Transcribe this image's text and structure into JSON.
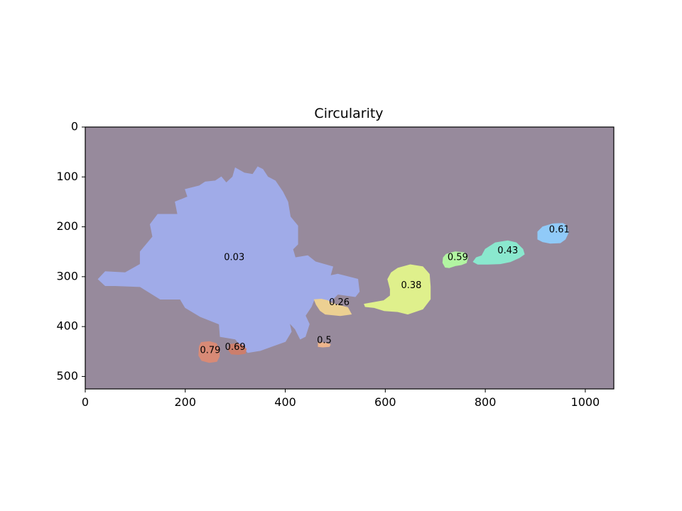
{
  "chart_data": {
    "type": "heatmap",
    "title": "Circularity",
    "xlabel": "",
    "ylabel": "",
    "xlim": [
      0,
      1057
    ],
    "ylim": [
      525,
      0
    ],
    "y_inverted": true,
    "grid": false,
    "background_color": "#978a9c",
    "x_ticks": [
      0,
      200,
      400,
      600,
      800,
      1000
    ],
    "y_ticks": [
      0,
      100,
      200,
      300,
      400,
      500
    ],
    "regions": [
      {
        "label": "0.03",
        "circularity": 0.03,
        "color": "#a0abe8",
        "label_x": 298,
        "label_y": 262,
        "outline": [
          [
            26,
            305
          ],
          [
            40,
            290
          ],
          [
            80,
            292
          ],
          [
            110,
            275
          ],
          [
            110,
            250
          ],
          [
            135,
            220
          ],
          [
            130,
            195
          ],
          [
            145,
            175
          ],
          [
            185,
            175
          ],
          [
            180,
            150
          ],
          [
            205,
            140
          ],
          [
            200,
            125
          ],
          [
            228,
            118
          ],
          [
            240,
            110
          ],
          [
            260,
            108
          ],
          [
            272,
            100
          ],
          [
            282,
            112
          ],
          [
            295,
            100
          ],
          [
            300,
            82
          ],
          [
            318,
            92
          ],
          [
            335,
            95
          ],
          [
            345,
            80
          ],
          [
            355,
            85
          ],
          [
            365,
            100
          ],
          [
            380,
            108
          ],
          [
            395,
            130
          ],
          [
            405,
            150
          ],
          [
            410,
            180
          ],
          [
            425,
            198
          ],
          [
            425,
            235
          ],
          [
            415,
            245
          ],
          [
            420,
            262
          ],
          [
            445,
            258
          ],
          [
            460,
            270
          ],
          [
            495,
            280
          ],
          [
            490,
            298
          ],
          [
            505,
            295
          ],
          [
            545,
            305
          ],
          [
            548,
            330
          ],
          [
            540,
            340
          ],
          [
            505,
            335
          ],
          [
            490,
            350
          ],
          [
            470,
            345
          ],
          [
            458,
            345
          ],
          [
            452,
            360
          ],
          [
            440,
            378
          ],
          [
            448,
            395
          ],
          [
            440,
            420
          ],
          [
            430,
            425
          ],
          [
            420,
            405
          ],
          [
            408,
            392
          ],
          [
            412,
            410
          ],
          [
            400,
            430
          ],
          [
            350,
            448
          ],
          [
            325,
            452
          ],
          [
            300,
            425
          ],
          [
            270,
            420
          ],
          [
            268,
            395
          ],
          [
            230,
            380
          ],
          [
            200,
            362
          ],
          [
            190,
            345
          ],
          [
            150,
            345
          ],
          [
            110,
            320
          ],
          [
            60,
            318
          ],
          [
            40,
            318
          ]
        ]
      },
      {
        "label": "0.26",
        "circularity": 0.26,
        "color": "#ecd092",
        "label_x": 508,
        "label_y": 352,
        "outline": [
          [
            472,
            345
          ],
          [
            485,
            348
          ],
          [
            492,
            353
          ],
          [
            525,
            362
          ],
          [
            532,
            375
          ],
          [
            510,
            378
          ],
          [
            480,
            375
          ],
          [
            470,
            368
          ],
          [
            462,
            356
          ],
          [
            458,
            346
          ]
        ]
      },
      {
        "label": "0.38",
        "circularity": 0.38,
        "color": "#dff08c",
        "label_x": 652,
        "label_y": 318,
        "outline": [
          [
            625,
            283
          ],
          [
            650,
            276
          ],
          [
            675,
            280
          ],
          [
            688,
            295
          ],
          [
            690,
            320
          ],
          [
            690,
            345
          ],
          [
            675,
            365
          ],
          [
            645,
            375
          ],
          [
            625,
            370
          ],
          [
            598,
            368
          ],
          [
            578,
            362
          ],
          [
            560,
            360
          ],
          [
            558,
            355
          ],
          [
            597,
            348
          ],
          [
            610,
            338
          ],
          [
            610,
            325
          ],
          [
            605,
            305
          ],
          [
            612,
            292
          ]
        ]
      },
      {
        "label": "0.59",
        "circularity": 0.59,
        "color": "#b2f5a2",
        "label_x": 745,
        "label_y": 262,
        "outline": [
          [
            722,
            255
          ],
          [
            740,
            250
          ],
          [
            758,
            252
          ],
          [
            765,
            262
          ],
          [
            762,
            272
          ],
          [
            752,
            276
          ],
          [
            740,
            278
          ],
          [
            728,
            282
          ],
          [
            720,
            281
          ],
          [
            715,
            272
          ],
          [
            716,
            262
          ]
        ]
      },
      {
        "label": "0.43",
        "circularity": 0.43,
        "color": "#8ae8ce",
        "label_x": 845,
        "label_y": 248,
        "outline": [
          [
            800,
            245
          ],
          [
            820,
            232
          ],
          [
            845,
            228
          ],
          [
            862,
            232
          ],
          [
            875,
            245
          ],
          [
            878,
            255
          ],
          [
            868,
            262
          ],
          [
            850,
            270
          ],
          [
            830,
            274
          ],
          [
            805,
            275
          ],
          [
            785,
            275
          ],
          [
            776,
            270
          ],
          [
            782,
            262
          ],
          [
            793,
            258
          ]
        ]
      },
      {
        "label": "0.61",
        "circularity": 0.61,
        "color": "#90caf8",
        "label_x": 948,
        "label_y": 206,
        "outline": [
          [
            915,
            200
          ],
          [
            935,
            194
          ],
          [
            955,
            193
          ],
          [
            963,
            198
          ],
          [
            966,
            212
          ],
          [
            960,
            225
          ],
          [
            950,
            232
          ],
          [
            930,
            233
          ],
          [
            915,
            230
          ],
          [
            905,
            225
          ],
          [
            905,
            210
          ]
        ]
      },
      {
        "label": "0.5",
        "circularity": 0.5,
        "color": "#edb48c",
        "label_x": 478,
        "label_y": 428,
        "outline": [
          [
            466,
            432
          ],
          [
            480,
            433
          ],
          [
            490,
            436
          ],
          [
            488,
            440
          ],
          [
            475,
            441
          ],
          [
            466,
            440
          ]
        ]
      },
      {
        "label": "0.79",
        "circularity": 0.79,
        "color": "#d88a76",
        "label_x": 250,
        "label_y": 448,
        "outline": [
          [
            232,
            432
          ],
          [
            248,
            430
          ],
          [
            262,
            434
          ],
          [
            268,
            445
          ],
          [
            268,
            460
          ],
          [
            263,
            470
          ],
          [
            248,
            472
          ],
          [
            233,
            468
          ],
          [
            227,
            458
          ],
          [
            228,
            440
          ]
        ]
      },
      {
        "label": "0.69",
        "circularity": 0.69,
        "color": "#cc7e6c",
        "label_x": 300,
        "label_y": 442,
        "outline": [
          [
            289,
            436
          ],
          [
            302,
            434
          ],
          [
            314,
            437
          ],
          [
            322,
            445
          ],
          [
            320,
            454
          ],
          [
            306,
            456
          ],
          [
            292,
            455
          ],
          [
            286,
            446
          ]
        ]
      }
    ]
  }
}
